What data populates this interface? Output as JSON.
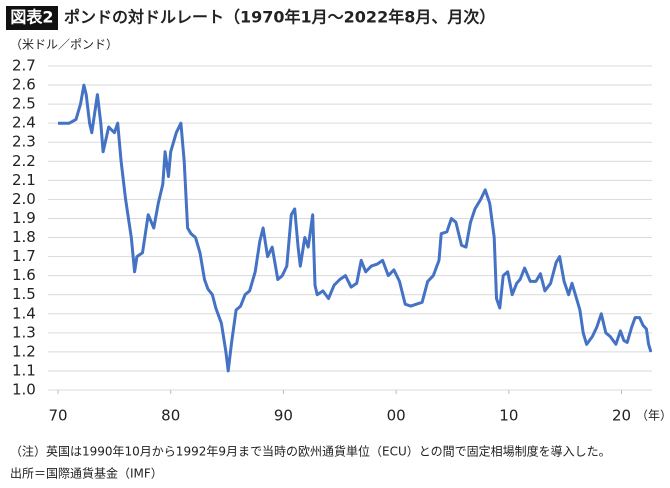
{
  "chart_data": {
    "type": "line",
    "badge": "図表2",
    "title": "ポンドの対ドルレート（1970年1月〜2022年8月、月次）",
    "y_label": "（米ドル／ポンド）",
    "x_unit": "（年）",
    "note": "（注）英国は1990年10月から1992年9月まで当時の欧州通貨単位（ECU）との間で固定相場制度を導入した。",
    "source": "出所＝国際通貨基金（IMF）",
    "xlim": [
      1970,
      2022.7
    ],
    "xticks": [
      {
        "value": 1970,
        "label": "70"
      },
      {
        "value": 1980,
        "label": "80"
      },
      {
        "value": 1990,
        "label": "90"
      },
      {
        "value": 2000,
        "label": "00"
      },
      {
        "value": 2010,
        "label": "10"
      },
      {
        "value": 2020,
        "label": "20"
      }
    ],
    "ylim": [
      1.0,
      2.7
    ],
    "yticks": [
      {
        "value": 1.0,
        "label": "1.0"
      },
      1.1,
      1.2,
      1.3,
      1.4,
      1.5,
      1.6,
      1.7,
      1.8,
      1.9,
      {
        "value": 2.0,
        "label": "2.0"
      },
      2.1,
      2.2,
      2.3,
      2.4,
      2.5,
      2.6,
      2.7
    ],
    "grid": true,
    "series": [
      {
        "color": "#4472c4",
        "x": [
          1970,
          1971,
          1971.6,
          1972.0,
          1972.3,
          1972.5,
          1972.8,
          1973.0,
          1973.5,
          1973.8,
          1974.0,
          1974.5,
          1975.0,
          1975.3,
          1975.6,
          1976.0,
          1976.5,
          1976.8,
          1977.0,
          1977.5,
          1978.0,
          1978.5,
          1978.9,
          1979.3,
          1979.5,
          1979.8,
          1980.0,
          1980.5,
          1980.9,
          1981.2,
          1981.5,
          1981.8,
          1982.2,
          1982.6,
          1983.0,
          1983.3,
          1983.7,
          1984.0,
          1984.5,
          1984.9,
          1985.1,
          1985.4,
          1985.8,
          1986.2,
          1986.6,
          1987.0,
          1987.5,
          1987.9,
          1988.2,
          1988.6,
          1989.0,
          1989.5,
          1989.9,
          1990.3,
          1990.7,
          1991.0,
          1991.3,
          1991.5,
          1991.9,
          1992.2,
          1992.6,
          1992.8,
          1993.0,
          1993.5,
          1994.0,
          1994.5,
          1995.0,
          1995.5,
          1996.0,
          1996.5,
          1996.9,
          1997.3,
          1997.8,
          1998.3,
          1998.8,
          1999.3,
          1999.8,
          2000.3,
          2000.8,
          2001.3,
          2001.8,
          2002.3,
          2002.8,
          2003.3,
          2003.8,
          2004.0,
          2004.5,
          2004.9,
          2005.3,
          2005.8,
          2006.2,
          2006.6,
          2007.0,
          2007.5,
          2007.9,
          2008.3,
          2008.7,
          2008.9,
          2009.2,
          2009.5,
          2009.9,
          2010.3,
          2010.7,
          2011.0,
          2011.4,
          2011.9,
          2012.4,
          2012.8,
          2013.2,
          2013.7,
          2014.2,
          2014.5,
          2014.9,
          2015.3,
          2015.6,
          2015.9,
          2016.3,
          2016.6,
          2016.9,
          2017.4,
          2017.8,
          2018.2,
          2018.6,
          2019.0,
          2019.5,
          2019.9,
          2020.2,
          2020.5,
          2020.9,
          2021.2,
          2021.6,
          2021.9,
          2022.2,
          2022.4,
          2022.6
        ],
        "values": [
          2.4,
          2.4,
          2.42,
          2.5,
          2.6,
          2.55,
          2.4,
          2.35,
          2.55,
          2.4,
          2.25,
          2.38,
          2.35,
          2.4,
          2.2,
          2.0,
          1.8,
          1.62,
          1.7,
          1.72,
          1.92,
          1.85,
          1.98,
          2.08,
          2.25,
          2.12,
          2.25,
          2.35,
          2.4,
          2.2,
          1.85,
          1.82,
          1.8,
          1.72,
          1.58,
          1.53,
          1.5,
          1.43,
          1.35,
          1.2,
          1.1,
          1.25,
          1.42,
          1.44,
          1.5,
          1.52,
          1.62,
          1.78,
          1.85,
          1.7,
          1.75,
          1.58,
          1.6,
          1.65,
          1.92,
          1.95,
          1.75,
          1.65,
          1.8,
          1.75,
          1.92,
          1.55,
          1.5,
          1.52,
          1.48,
          1.55,
          1.58,
          1.6,
          1.54,
          1.56,
          1.68,
          1.62,
          1.65,
          1.66,
          1.68,
          1.6,
          1.63,
          1.57,
          1.45,
          1.44,
          1.45,
          1.46,
          1.57,
          1.6,
          1.68,
          1.82,
          1.83,
          1.9,
          1.88,
          1.76,
          1.75,
          1.88,
          1.95,
          2.0,
          2.05,
          1.98,
          1.8,
          1.48,
          1.43,
          1.6,
          1.62,
          1.5,
          1.56,
          1.58,
          1.64,
          1.57,
          1.57,
          1.61,
          1.52,
          1.56,
          1.67,
          1.7,
          1.57,
          1.5,
          1.56,
          1.5,
          1.42,
          1.3,
          1.24,
          1.28,
          1.33,
          1.4,
          1.3,
          1.28,
          1.24,
          1.31,
          1.26,
          1.25,
          1.33,
          1.38,
          1.38,
          1.34,
          1.32,
          1.24,
          1.2
        ]
      }
    ]
  }
}
